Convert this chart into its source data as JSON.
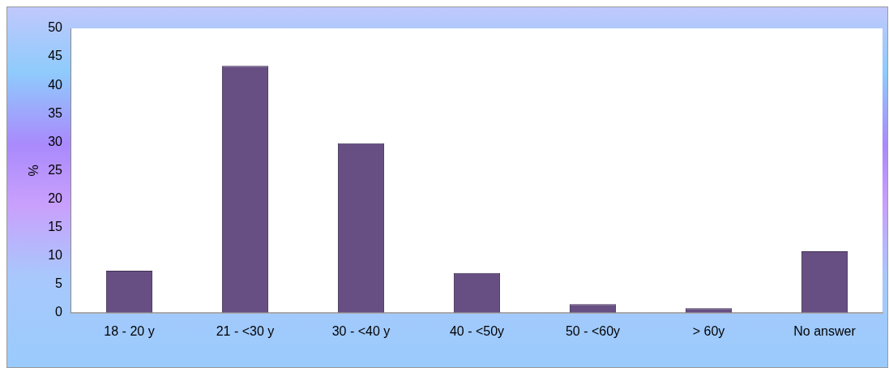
{
  "chart_data": {
    "type": "bar",
    "ylabel": "%",
    "categories": [
      "18 - 20 y",
      "21 - <30 y",
      "30 - <40 y",
      "40 - <50y",
      "50 - <60y",
      "> 60y",
      "No answer"
    ],
    "values": [
      7.4,
      43.4,
      29.8,
      7.0,
      1.5,
      0.8,
      10.8
    ],
    "color": "#674f83",
    "ylim": [
      0,
      50
    ],
    "yticks": [
      0,
      5,
      10,
      15,
      20,
      25,
      30,
      35,
      40,
      45,
      50
    ],
    "grid": false,
    "legend": false
  }
}
